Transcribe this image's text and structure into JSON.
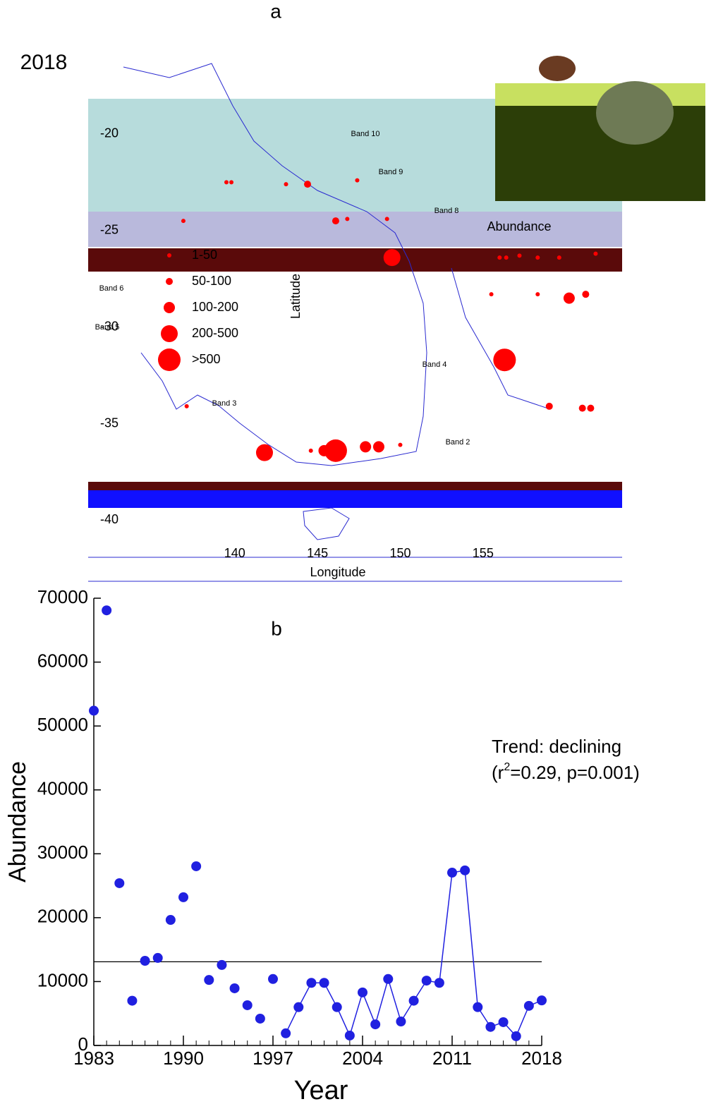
{
  "chart_data": [
    {
      "type": "map",
      "title": "a",
      "year_label": "2018",
      "xlabel": "Longitude",
      "ylabel": "Latitude",
      "xlim": [
        131.15,
        163.4
      ],
      "ylim": [
        -43.2,
        -15.8
      ],
      "xticks": [
        140,
        145,
        150,
        155
      ],
      "yticks": [
        -20,
        -25,
        -30,
        -35,
        -40
      ],
      "legend_title": "Abundance",
      "size_classes": [
        "1-50",
        "50-100",
        "100-200",
        "200-500",
        ">500"
      ],
      "color": "#ff0000",
      "band_labels": [
        "Band 10",
        "Band 9",
        "Band 8",
        "Band 6",
        "Band 5",
        "Band 4",
        "Band 3",
        "Band 2"
      ],
      "points": {
        "x": [
          139.5,
          139.8,
          143.1,
          144.4,
          147.4,
          136.9,
          146.1,
          146.8,
          149.2,
          149.5,
          160.2,
          161.2,
          156.3,
          141.8,
          144.6,
          146.1,
          145.4,
          147.9,
          148.7,
          150.0,
          159.0,
          161.0,
          161.5,
          137.1,
          156.0,
          156.4,
          157.2,
          158.3,
          159.6,
          161.8,
          155.5,
          158.3
        ],
        "y": [
          -22.5,
          -22.5,
          -22.6,
          -22.6,
          -22.4,
          -24.5,
          -24.5,
          -24.4,
          -24.4,
          -26.4,
          -28.5,
          -28.3,
          -31.7,
          -36.5,
          -36.4,
          -36.4,
          -36.4,
          -36.2,
          -36.2,
          -36.1,
          -34.1,
          -34.2,
          -34.2,
          -34.1,
          -26.4,
          -26.4,
          -26.3,
          -26.4,
          -26.4,
          -26.2,
          -28.3,
          -28.3
        ],
        "size": [
          "1-50",
          "1-50",
          "1-50",
          "50-100",
          "1-50",
          "1-50",
          "50-100",
          "1-50",
          "1-50",
          "200-500",
          "100-200",
          "50-100",
          ">500",
          "200-500",
          "1-50",
          ">500",
          "100-200",
          "100-200",
          "100-200",
          "1-50",
          "50-100",
          "50-100",
          "50-100",
          "1-50",
          "1-50",
          "1-50",
          "1-50",
          "1-50",
          "1-50",
          "1-50",
          "1-50",
          "1-50"
        ]
      }
    },
    {
      "type": "line",
      "title": "b",
      "xlabel": "Year",
      "ylabel": "Abundance",
      "color": "#2020e0",
      "x": [
        1983,
        1984,
        1985,
        1986,
        1987,
        1988,
        1989,
        1990,
        1991,
        1992,
        1993,
        1994,
        1995,
        1996,
        1997,
        1998,
        1999,
        2000,
        2001,
        2002,
        2003,
        2004,
        2005,
        2006,
        2007,
        2008,
        2009,
        2010,
        2011,
        2012,
        2013,
        2014,
        2015,
        2016,
        2017,
        2018
      ],
      "values": [
        52400,
        68100,
        25400,
        7000,
        13250,
        13700,
        19650,
        23200,
        28050,
        10250,
        12600,
        8950,
        6300,
        4200,
        10400,
        1900,
        6000,
        9800,
        9800,
        6000,
        1550,
        8300,
        3300,
        10400,
        3750,
        7000,
        10150,
        9800,
        27050,
        27400,
        6000,
        2900,
        3650,
        1450,
        6200,
        7050
      ],
      "connected_x": [
        1998,
        2018
      ],
      "trend_line": 13100,
      "xlim": [
        1983,
        2018
      ],
      "ylim": [
        0,
        70000
      ],
      "xticks": [
        1983,
        1990,
        1997,
        2004,
        2011,
        2018
      ],
      "yticks": [
        0,
        10000,
        20000,
        30000,
        40000,
        50000,
        60000,
        70000
      ],
      "annotation": {
        "line1": "Trend: declining",
        "pre": "(r",
        "sup": "2",
        "post": "=0.29, p=0.001)"
      }
    }
  ]
}
